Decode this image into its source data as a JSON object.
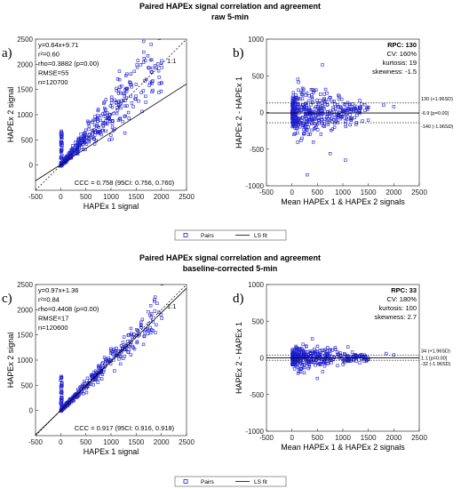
{
  "figure": {
    "sections": [
      {
        "title_line1": "Paired HAPEx signal correlation and agreement",
        "title_line2": "raw 5-min"
      },
      {
        "title_line1": "Paired HAPEx signal correlation and agreement",
        "title_line2": "baseline-corrected 5-min"
      }
    ],
    "legends": [
      {
        "pairs_label": "Pairs",
        "fit_label": "LS fit"
      },
      {
        "pairs_label": "Pairs",
        "fit_label": "LS fit"
      }
    ],
    "colors": {
      "points": "#2020d0",
      "lines": "#000000",
      "background": "#ffffff"
    }
  },
  "chart_data": [
    {
      "panel_label": "a)",
      "type": "scatter",
      "xlabel": "HAPEx 1 signal",
      "ylabel": "HAPEx 2 signal",
      "xlim": [
        -500,
        2500
      ],
      "ylim": [
        -500,
        2500
      ],
      "xticks": [
        -500,
        0,
        500,
        1000,
        1500,
        2000,
        2500
      ],
      "yticks": [
        0,
        500,
        1000,
        1500,
        2000,
        2500
      ],
      "stats": [
        "y=0.64x+9.71",
        "r²=0.60",
        "rho=0.3882 (p=0.00)",
        "RMSE=55",
        "n=120700"
      ],
      "ccc_text": "CCC = 0.758 (95CI: 0.756, 0.760)",
      "identity_label": "1:1",
      "fit": {
        "slope": 0.64,
        "intercept": 9.71
      },
      "points_model": {
        "slope": 1.05,
        "spread": 0.32,
        "xmax": 2000,
        "seed": 11,
        "count": 520
      },
      "points": [
        [
          1930,
          2010
        ],
        [
          2000,
          2020
        ],
        [
          1700,
          1700
        ],
        [
          1500,
          1600
        ],
        [
          1250,
          1420
        ],
        [
          1100,
          1250
        ],
        [
          900,
          1300
        ]
      ]
    },
    {
      "panel_label": "b)",
      "type": "scatter",
      "variant": "bland-altman",
      "xlabel": "Mean HAPEx 1 & HAPEx 2 signals",
      "ylabel": "HAPEx 2 - HAPEx 1",
      "xlim": [
        -500,
        2500
      ],
      "ylim": [
        -1000,
        1000
      ],
      "xticks": [
        -500,
        0,
        500,
        1000,
        1500,
        2000,
        2500
      ],
      "yticks": [
        -1000,
        -500,
        0,
        500,
        1000
      ],
      "stats_bold": "RPC: 130",
      "stats": [
        "CV: 160%",
        "kurtosis: 19",
        "skewness: -1.5"
      ],
      "hlines": [
        {
          "y": 130,
          "label": "130 (+1.96SD)",
          "style": "dotted"
        },
        {
          "y": -6.9,
          "label": "-6.9 [p=0.00]",
          "style": "solid"
        },
        {
          "y": -140,
          "label": "-140 (-1.96SD)",
          "style": "dotted"
        }
      ],
      "points_model": {
        "spread": 220,
        "xmax": 2000,
        "seed": 23,
        "count": 480
      },
      "points": [
        [
          1800,
          100
        ],
        [
          2000,
          80
        ],
        [
          600,
          650
        ],
        [
          1050,
          -650
        ],
        [
          300,
          -850
        ],
        [
          750,
          -560
        ]
      ]
    },
    {
      "panel_label": "c)",
      "type": "scatter",
      "xlabel": "HAPEx 1 signal",
      "ylabel": "HAPEx 2 signal",
      "xlim": [
        -500,
        2500
      ],
      "ylim": [
        -500,
        2500
      ],
      "xticks": [
        -500,
        0,
        500,
        1000,
        1500,
        2000,
        2500
      ],
      "yticks": [
        0,
        500,
        1000,
        1500,
        2000,
        2500
      ],
      "stats": [
        "y=0.97x+1.36",
        "r²=0.84",
        "rho=0.4408 (p=0.00)",
        "RMSE=17",
        "n=120600"
      ],
      "ccc_text": "CCC = 0.917 (95CI: 0.916, 0.918)",
      "identity_label": "1:1",
      "fit": {
        "slope": 0.97,
        "intercept": 1.36
      },
      "points_model": {
        "slope": 1.0,
        "spread": 0.16,
        "xmax": 2000,
        "seed": 37,
        "count": 420
      },
      "points": [
        [
          1950,
          1950
        ],
        [
          1800,
          1850
        ],
        [
          1600,
          1650
        ],
        [
          1350,
          1500
        ],
        [
          1000,
          1200
        ]
      ]
    },
    {
      "panel_label": "d)",
      "type": "scatter",
      "variant": "bland-altman",
      "xlabel": "Mean HAPEx 1 & HAPEx 2 signals",
      "ylabel": "HAPEx 2 - HAPEx 1",
      "xlim": [
        -500,
        2500
      ],
      "ylim": [
        -1000,
        1000
      ],
      "xticks": [
        -500,
        0,
        500,
        1000,
        1500,
        2000,
        2500
      ],
      "yticks": [
        -1000,
        -500,
        0,
        500,
        1000
      ],
      "stats_bold": "RPC: 33",
      "stats": [
        "CV: 180%",
        "kurtosis: 100",
        "skewness: 2.7"
      ],
      "hlines": [
        {
          "y": 34,
          "label": "34 (+1.96SD)",
          "style": "dotted"
        },
        {
          "y": 1.1,
          "label": "1.1 [p=0.00]",
          "style": "solid"
        },
        {
          "y": -32,
          "label": "-32 (-1.96SD)",
          "style": "dotted"
        }
      ],
      "points_model": {
        "spread": 110,
        "xmax": 2000,
        "seed": 53,
        "count": 420
      },
      "points": [
        [
          1850,
          60
        ],
        [
          2000,
          40
        ],
        [
          1100,
          150
        ],
        [
          400,
          260
        ],
        [
          500,
          -280
        ]
      ]
    }
  ]
}
